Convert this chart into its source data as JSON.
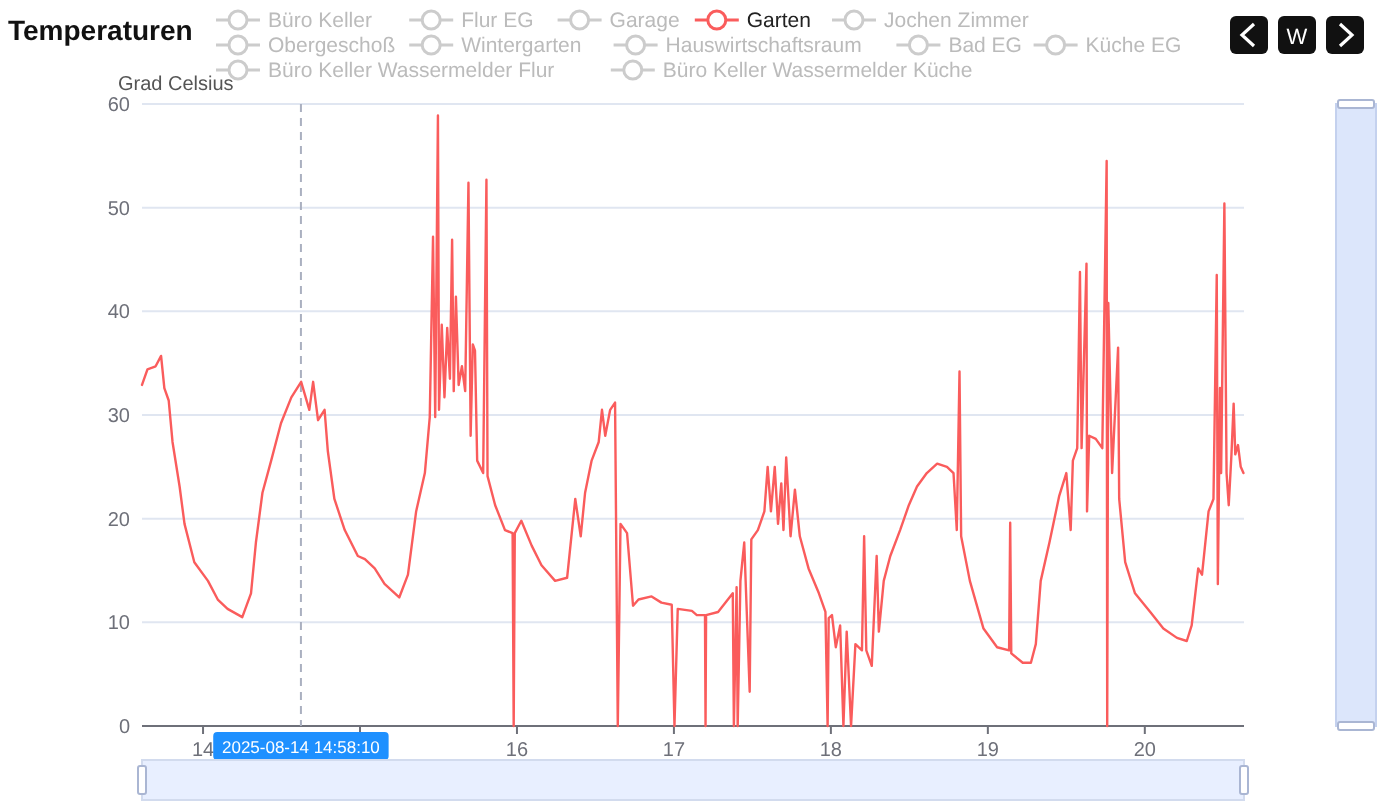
{
  "chart_data": {
    "type": "line",
    "title": "Temperaturen",
    "ylabel": "Grad Celsius",
    "annotations": [
      "W"
    ],
    "xlim": [
      "2025-08-13T14:40",
      "2025-08-20T15:10"
    ],
    "xticks": [
      {
        "value": "2025-08-14",
        "label": "14"
      },
      {
        "value": "2025-08-15",
        "label": null
      },
      {
        "value": "2025-08-16",
        "label": "16"
      },
      {
        "value": "2025-08-17",
        "label": "17"
      },
      {
        "value": "2025-08-18",
        "label": "18"
      },
      {
        "value": "2025-08-19",
        "label": "19"
      },
      {
        "value": "2025-08-20",
        "label": "20"
      }
    ],
    "ylim": [
      0,
      60
    ],
    "yticks": [
      0,
      10,
      20,
      30,
      40,
      50,
      60
    ],
    "grid": "y",
    "legend": "top",
    "marker": "none",
    "line_style": "solid",
    "ref_lines": [
      {
        "axis": "x",
        "value": "2025-08-14T14:58",
        "label": "2025-08-14 14:58:10",
        "line_style": "dashed",
        "color": "#aab0c0"
      }
    ],
    "series": [
      {
        "name": "Büro Keller",
        "color": "#cccccc"
      },
      {
        "name": "Flur EG",
        "color": "#cccccc"
      },
      {
        "name": "Garage",
        "color": "#cccccc"
      },
      {
        "name": "Garten",
        "color": "#fa5c5c",
        "x": [
          "2025-08-13T14:40",
          "2025-08-13T15:30",
          "2025-08-13T16:45",
          "2025-08-13T17:35",
          "2025-08-13T18:05",
          "2025-08-13T18:45",
          "2025-08-13T19:20",
          "2025-08-13T20:25",
          "2025-08-13T21:10",
          "2025-08-13T22:40",
          "2025-08-14T00:45",
          "2025-08-14T02:15",
          "2025-08-14T03:45",
          "2025-08-14T06:00",
          "2025-08-14T07:20",
          "2025-08-14T08:05",
          "2025-08-14T09:05",
          "2025-08-14T10:25",
          "2025-08-14T11:55",
          "2025-08-14T13:30",
          "2025-08-14T15:00",
          "2025-08-14T16:15",
          "2025-08-14T16:50",
          "2025-08-14T17:35",
          "2025-08-14T18:35",
          "2025-08-14T19:05",
          "2025-08-14T20:05",
          "2025-08-14T21:40",
          "2025-08-14T23:40",
          "2025-08-15T00:45",
          "2025-08-15T02:15",
          "2025-08-15T03:45",
          "2025-08-15T06:00",
          "2025-08-15T07:20",
          "2025-08-15T08:35",
          "2025-08-15T09:55",
          "2025-08-15T10:40",
          "2025-08-15T11:10",
          "2025-08-15T11:30",
          "2025-08-15T11:55",
          "2025-08-15T12:05",
          "2025-08-15T12:30",
          "2025-08-15T12:55",
          "2025-08-15T13:20",
          "2025-08-15T13:45",
          "2025-08-15T14:05",
          "2025-08-15T14:20",
          "2025-08-15T14:40",
          "2025-08-15T15:05",
          "2025-08-15T15:35",
          "2025-08-15T16:05",
          "2025-08-15T16:35",
          "2025-08-15T16:55",
          "2025-08-15T17:15",
          "2025-08-15T17:35",
          "2025-08-15T17:55",
          "2025-08-15T18:50",
          "2025-08-15T19:20",
          "2025-08-15T19:30",
          "2025-08-15T20:40",
          "2025-08-15T22:10",
          "2025-08-15T23:20",
          "2025-08-15T23:30",
          "2025-08-15T23:40",
          "2025-08-16T00:40",
          "2025-08-16T02:15",
          "2025-08-16T03:45",
          "2025-08-16T05:50",
          "2025-08-16T07:40",
          "2025-08-16T08:55",
          "2025-08-16T09:45",
          "2025-08-16T10:25",
          "2025-08-16T11:25",
          "2025-08-16T12:30",
          "2025-08-16T13:00",
          "2025-08-16T13:30",
          "2025-08-16T14:15",
          "2025-08-16T15:00",
          "2025-08-16T15:25",
          "2025-08-16T15:50",
          "2025-08-16T16:50",
          "2025-08-16T17:45",
          "2025-08-16T18:35",
          "2025-08-16T20:35",
          "2025-08-16T22:05",
          "2025-08-16T23:40",
          "2025-08-17T00:05",
          "2025-08-17T00:35",
          "2025-08-17T02:45",
          "2025-08-17T03:30",
          "2025-08-17T04:45",
          "2025-08-17T04:50",
          "2025-08-17T04:55",
          "2025-08-17T06:45",
          "2025-08-17T08:15",
          "2025-08-17T09:00",
          "2025-08-17T09:10",
          "2025-08-17T09:35",
          "2025-08-17T09:45",
          "2025-08-17T10:10",
          "2025-08-17T10:45",
          "2025-08-17T11:35",
          "2025-08-17T11:50",
          "2025-08-17T12:50",
          "2025-08-17T13:50",
          "2025-08-17T14:20",
          "2025-08-17T14:50",
          "2025-08-17T15:25",
          "2025-08-17T15:55",
          "2025-08-17T16:25",
          "2025-08-17T16:45",
          "2025-08-17T17:10",
          "2025-08-17T17:50",
          "2025-08-17T18:30",
          "2025-08-17T19:15",
          "2025-08-17T20:35",
          "2025-08-17T22:10",
          "2025-08-17T23:10",
          "2025-08-17T23:30",
          "2025-08-17T23:40",
          "2025-08-18T00:10",
          "2025-08-18T00:45",
          "2025-08-18T01:25",
          "2025-08-18T01:55",
          "2025-08-18T02:25",
          "2025-08-18T03:05",
          "2025-08-18T03:45",
          "2025-08-18T04:45",
          "2025-08-18T05:05",
          "2025-08-18T05:25",
          "2025-08-18T06:15",
          "2025-08-18T07:00",
          "2025-08-18T07:20",
          "2025-08-18T08:05",
          "2025-08-18T09:05",
          "2025-08-18T10:35",
          "2025-08-18T11:55",
          "2025-08-18T13:10",
          "2025-08-18T14:40",
          "2025-08-18T16:15",
          "2025-08-18T17:45",
          "2025-08-18T18:45",
          "2025-08-18T19:15",
          "2025-08-18T19:40",
          "2025-08-18T19:55",
          "2025-08-18T21:15",
          "2025-08-18T23:20",
          "2025-08-19T01:25",
          "2025-08-19T03:15",
          "2025-08-19T03:25",
          "2025-08-19T03:35",
          "2025-08-19T05:20",
          "2025-08-19T06:35",
          "2025-08-19T07:20",
          "2025-08-19T08:05",
          "2025-08-19T09:25",
          "2025-08-19T10:55",
          "2025-08-19T12:00",
          "2025-08-19T12:40",
          "2025-08-19T13:00",
          "2025-08-19T13:40",
          "2025-08-19T14:05",
          "2025-08-19T14:20",
          "2025-08-19T15:05",
          "2025-08-19T15:10",
          "2025-08-19T15:30",
          "2025-08-19T16:30",
          "2025-08-19T17:30",
          "2025-08-19T18:10",
          "2025-08-19T18:15",
          "2025-08-19T18:25",
          "2025-08-19T19:00",
          "2025-08-19T19:55",
          "2025-08-19T20:05",
          "2025-08-19T21:00",
          "2025-08-19T22:30",
          "2025-08-20T00:50",
          "2025-08-20T02:50",
          "2025-08-20T04:55",
          "2025-08-20T06:25",
          "2025-08-20T07:10",
          "2025-08-20T08:10",
          "2025-08-20T08:45",
          "2025-08-20T09:45",
          "2025-08-20T10:30",
          "2025-08-20T11:00",
          "2025-08-20T11:10",
          "2025-08-20T11:30",
          "2025-08-20T11:40",
          "2025-08-20T12:10",
          "2025-08-20T12:30",
          "2025-08-20T12:50",
          "2025-08-20T13:15",
          "2025-08-20T13:35",
          "2025-08-20T13:50",
          "2025-08-20T14:15",
          "2025-08-20T14:40",
          "2025-08-20T15:05"
        ],
        "values": [
          32.9,
          34.4,
          34.7,
          35.7,
          32.6,
          31.4,
          27.4,
          23.1,
          19.5,
          15.8,
          14.0,
          12.2,
          11.3,
          10.5,
          12.8,
          17.7,
          22.5,
          25.6,
          29.2,
          31.7,
          33.2,
          30.5,
          33.2,
          29.5,
          30.5,
          26.5,
          21.9,
          18.9,
          16.4,
          16.1,
          15.2,
          13.7,
          12.4,
          14.6,
          20.7,
          24.4,
          29.8,
          47.2,
          29.8,
          58.9,
          30.5,
          38.7,
          31.7,
          38.4,
          33.5,
          46.9,
          32.3,
          41.4,
          32.9,
          34.7,
          32.3,
          52.4,
          28.0,
          36.8,
          36.2,
          25.6,
          24.4,
          52.7,
          24.1,
          21.3,
          18.9,
          18.6,
          0,
          18.6,
          19.8,
          17.4,
          15.5,
          14.0,
          14.3,
          21.9,
          18.3,
          22.5,
          25.6,
          27.4,
          30.5,
          28.0,
          30.5,
          31.2,
          0,
          19.5,
          18.6,
          11.6,
          12.2,
          12.5,
          11.9,
          11.7,
          0,
          11.3,
          11.1,
          10.7,
          10.7,
          0,
          10.7,
          11.0,
          12.2,
          12.8,
          0,
          13.4,
          0,
          14.0,
          17.7,
          3.3,
          18.0,
          18.9,
          20.7,
          25.0,
          20.7,
          25.0,
          19.5,
          23.4,
          18.9,
          25.9,
          18.3,
          22.8,
          18.3,
          15.2,
          12.8,
          11.0,
          0,
          10.4,
          10.7,
          7.6,
          9.7,
          0,
          9.1,
          0,
          7.9,
          7.3,
          18.3,
          7.3,
          5.8,
          16.4,
          9.1,
          14.0,
          16.4,
          18.9,
          21.3,
          23.1,
          24.4,
          25.3,
          25.0,
          24.4,
          18.9,
          34.2,
          18.3,
          14.0,
          9.4,
          7.6,
          7.3,
          19.6,
          7.0,
          6.1,
          6.1,
          7.9,
          14.0,
          17.7,
          22.2,
          24.4,
          18.9,
          25.6,
          26.8,
          43.8,
          26.8,
          44.6,
          20.7,
          28.0,
          27.7,
          26.8,
          54.5,
          0,
          40.8,
          24.4,
          36.5,
          21.9,
          15.8,
          12.8,
          11.0,
          9.4,
          8.5,
          8.2,
          9.7,
          15.2,
          14.6,
          20.7,
          21.9,
          43.5,
          13.7,
          32.6,
          24.4,
          50.4,
          24.4,
          21.3,
          26.2,
          31.1,
          26.2,
          27.1,
          25.0,
          24.4
        ]
      },
      {
        "name": "Jochen Zimmer",
        "color": "#cccccc"
      },
      {
        "name": "Obergeschoß",
        "color": "#cccccc"
      },
      {
        "name": "Wintergarten",
        "color": "#cccccc"
      },
      {
        "name": "Hauswirtschaftsraum",
        "color": "#cccccc"
      },
      {
        "name": "Bad EG",
        "color": "#cccccc"
      },
      {
        "name": "Küche EG",
        "color": "#cccccc"
      },
      {
        "name": "Büro Keller Wassermelder Flur",
        "color": "#cccccc"
      },
      {
        "name": "Büro Keller Wassermelder Küche",
        "color": "#cccccc"
      }
    ]
  }
}
